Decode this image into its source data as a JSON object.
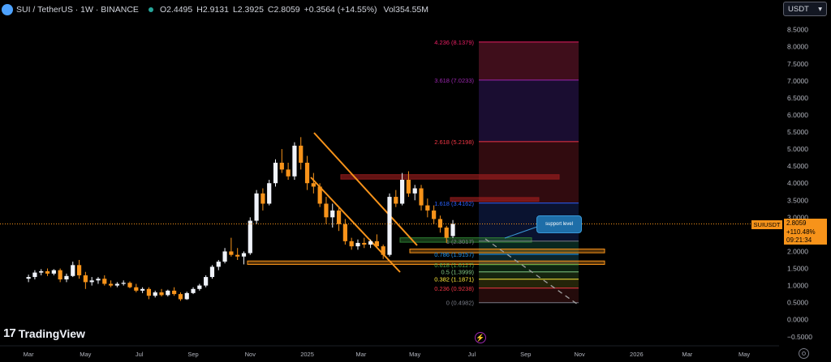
{
  "header": {
    "title": "SUI / TetherUS · 1W · BINANCE",
    "open_label": "O",
    "open": "2.4495",
    "high_label": "H",
    "high": "2.9131",
    "low_label": "L",
    "low": "2.3925",
    "close_label": "C",
    "close": "2.8059",
    "change": "+0.3564 (+14.55%)",
    "volume_label": "Vol",
    "volume": "354.55M"
  },
  "currency_button": {
    "label": "USDT",
    "icon": "chevron-down-icon"
  },
  "price_tag": {
    "symbol": "SUIUSDT",
    "price": "2.8059",
    "change": "+110.48%",
    "countdown": "09:21:34"
  },
  "callout": {
    "text": "support level"
  },
  "branding": {
    "logo_text": "TradingView",
    "logo_mark": "17"
  },
  "colors": {
    "background": "#000000",
    "up": "#f0f3fa",
    "down": "#f7931a",
    "wedge": "#f7931a",
    "price_line": "#f7931a",
    "grid_text": "#b2b5be"
  },
  "chart_data": {
    "type": "candlestick",
    "ylim": [
      -0.6,
      8.8
    ],
    "y_ticks": [
      "8.5000",
      "8.0000",
      "7.5000",
      "7.0000",
      "6.5000",
      "6.0000",
      "5.5000",
      "5.0000",
      "4.5000",
      "4.0000",
      "3.5000",
      "3.0000",
      "2.5000",
      "2.0000",
      "1.5000",
      "1.0000",
      "0.5000",
      "0.0000",
      "−0.5000"
    ],
    "y_tick_values": [
      8.5,
      8.0,
      7.5,
      7.0,
      6.5,
      6.0,
      5.5,
      5.0,
      4.5,
      4.0,
      3.5,
      3.0,
      2.5,
      2.0,
      1.5,
      1.0,
      0.5,
      0.0,
      -0.5
    ],
    "x_ticks": [
      {
        "label": "Mar",
        "week": 0
      },
      {
        "label": "May",
        "week": 9
      },
      {
        "label": "Jul",
        "week": 17.5
      },
      {
        "label": "Sep",
        "week": 26
      },
      {
        "label": "Nov",
        "week": 35
      },
      {
        "label": "2025",
        "week": 44
      },
      {
        "label": "Mar",
        "week": 52.5
      },
      {
        "label": "May",
        "week": 61
      },
      {
        "label": "Jul",
        "week": 70
      },
      {
        "label": "Sep",
        "week": 78.5
      },
      {
        "label": "Nov",
        "week": 87
      },
      {
        "label": "2026",
        "week": 96
      },
      {
        "label": "Mar",
        "week": 104
      },
      {
        "label": "May",
        "week": 113
      }
    ],
    "x_range_weeks": [
      -4.5,
      118.5
    ],
    "last_price": 2.8059,
    "candles": [
      [
        1.2,
        1.32,
        1.1,
        1.25
      ],
      [
        1.25,
        1.45,
        1.18,
        1.38
      ],
      [
        1.38,
        1.48,
        1.3,
        1.42
      ],
      [
        1.42,
        1.5,
        1.28,
        1.35
      ],
      [
        1.35,
        1.48,
        1.3,
        1.45
      ],
      [
        1.45,
        1.5,
        1.1,
        1.18
      ],
      [
        1.18,
        1.35,
        1.1,
        1.28
      ],
      [
        1.28,
        1.7,
        1.25,
        1.6
      ],
      [
        1.6,
        1.75,
        1.2,
        1.3
      ],
      [
        1.3,
        1.4,
        0.9,
        1.1
      ],
      [
        1.1,
        1.25,
        1.0,
        1.15
      ],
      [
        1.15,
        1.25,
        1.05,
        1.2
      ],
      [
        1.2,
        1.3,
        1.0,
        1.05
      ],
      [
        1.05,
        1.15,
        0.95,
        1.0
      ],
      [
        1.0,
        1.1,
        0.95,
        1.05
      ],
      [
        1.05,
        1.15,
        1.0,
        1.08
      ],
      [
        1.08,
        1.12,
        0.92,
        0.95
      ],
      [
        0.95,
        1.05,
        0.8,
        0.85
      ],
      [
        0.85,
        0.95,
        0.78,
        0.9
      ],
      [
        0.9,
        0.95,
        0.6,
        0.7
      ],
      [
        0.7,
        0.85,
        0.65,
        0.8
      ],
      [
        0.8,
        0.9,
        0.68,
        0.72
      ],
      [
        0.72,
        0.88,
        0.68,
        0.85
      ],
      [
        0.85,
        0.95,
        0.7,
        0.75
      ],
      [
        0.75,
        0.8,
        0.55,
        0.6
      ],
      [
        0.6,
        0.82,
        0.58,
        0.78
      ],
      [
        0.78,
        0.95,
        0.75,
        0.9
      ],
      [
        0.9,
        1.05,
        0.85,
        1.0
      ],
      [
        1.0,
        1.3,
        0.95,
        1.25
      ],
      [
        1.25,
        1.6,
        1.2,
        1.55
      ],
      [
        1.55,
        1.75,
        1.45,
        1.7
      ],
      [
        1.7,
        2.1,
        1.65,
        2.0
      ],
      [
        2.0,
        2.4,
        1.85,
        1.9
      ],
      [
        1.9,
        2.1,
        1.75,
        1.85
      ],
      [
        1.85,
        2.0,
        1.62,
        1.95
      ],
      [
        1.95,
        3.0,
        1.9,
        2.9
      ],
      [
        2.9,
        3.8,
        2.8,
        3.7
      ],
      [
        3.7,
        3.85,
        3.2,
        3.4
      ],
      [
        3.4,
        4.1,
        3.35,
        4.0
      ],
      [
        4.0,
        4.7,
        3.9,
        4.6
      ],
      [
        4.6,
        5.0,
        4.3,
        4.4
      ],
      [
        4.4,
        4.6,
        4.1,
        4.2
      ],
      [
        4.2,
        5.2,
        4.1,
        5.1
      ],
      [
        5.1,
        5.35,
        4.4,
        4.6
      ],
      [
        4.6,
        4.8,
        3.8,
        4.0
      ],
      [
        4.0,
        4.3,
        3.7,
        3.9
      ],
      [
        3.9,
        4.0,
        3.3,
        3.4
      ],
      [
        3.4,
        3.6,
        2.8,
        3.0
      ],
      [
        3.0,
        3.4,
        2.7,
        3.2
      ],
      [
        3.2,
        3.3,
        2.6,
        2.8
      ],
      [
        2.8,
        2.95,
        2.2,
        2.3
      ],
      [
        2.3,
        2.4,
        2.05,
        2.15
      ],
      [
        2.15,
        2.35,
        2.05,
        2.25
      ],
      [
        2.25,
        2.4,
        2.1,
        2.2
      ],
      [
        2.2,
        2.35,
        2.1,
        2.3
      ],
      [
        2.3,
        2.5,
        2.1,
        2.15
      ],
      [
        2.15,
        2.2,
        1.78,
        1.9
      ],
      [
        1.9,
        3.7,
        1.85,
        3.6
      ],
      [
        3.6,
        3.8,
        3.3,
        3.4
      ],
      [
        3.4,
        4.3,
        3.35,
        4.1
      ],
      [
        4.1,
        4.35,
        3.6,
        3.7
      ],
      [
        3.7,
        3.95,
        3.5,
        3.85
      ],
      [
        3.85,
        3.95,
        3.2,
        3.35
      ],
      [
        3.35,
        3.55,
        3.0,
        3.2
      ],
      [
        3.2,
        3.35,
        2.8,
        2.95
      ],
      [
        2.95,
        3.05,
        2.55,
        2.7
      ],
      [
        2.7,
        2.75,
        2.25,
        2.4
      ],
      [
        2.45,
        2.92,
        2.39,
        2.81
      ]
    ]
  },
  "fibonacci": {
    "levels": [
      {
        "label": "4.236 (8.1379)",
        "value": 8.1379,
        "color": "#e91e63"
      },
      {
        "label": "3.618 (7.0233)",
        "value": 7.0233,
        "color": "#9c27b0"
      },
      {
        "label": "2.618 (5.2198)",
        "value": 5.2198,
        "color": "#f23645"
      },
      {
        "label": "1.618 (3.4162)",
        "value": 3.4162,
        "color": "#2962ff"
      },
      {
        "label": "1 (2.3017)",
        "value": 2.3017,
        "color": "#787b86"
      },
      {
        "label": "0.786 (1.9157)",
        "value": 1.9157,
        "color": "#2196f3"
      },
      {
        "label": "0.618 (1.6127)",
        "value": 1.6127,
        "color": "#4caf50"
      },
      {
        "label": "0.5 (1.3999)",
        "value": 1.3999,
        "color": "#81c784"
      },
      {
        "label": "0.382 (1.1871)",
        "value": 1.1871,
        "color": "#ffeb3b"
      },
      {
        "label": "0.236 (0.9238)",
        "value": 0.9238,
        "color": "#f23645"
      },
      {
        "label": "0 (0.4982)",
        "value": 0.4982,
        "color": "#787b86"
      }
    ],
    "zone_colors": [
      {
        "from": 8.1379,
        "to": 7.0233,
        "color": "#4a1020"
      },
      {
        "from": 7.0233,
        "to": 5.2198,
        "color": "#1e0f3a"
      },
      {
        "from": 5.2198,
        "to": 3.4162,
        "color": "#3a0d12"
      },
      {
        "from": 3.4162,
        "to": 2.3017,
        "color": "#0c1638"
      },
      {
        "from": 2.3017,
        "to": 1.9157,
        "color": "#0b2f24"
      },
      {
        "from": 1.9157,
        "to": 1.6127,
        "color": "#0c2c33"
      },
      {
        "from": 1.6127,
        "to": 1.3999,
        "color": "#0f2a14"
      },
      {
        "from": 1.3999,
        "to": 1.1871,
        "color": "#1a2a12"
      },
      {
        "from": 1.1871,
        "to": 0.9238,
        "color": "#2a2a0a"
      },
      {
        "from": 0.9238,
        "to": 0.4982,
        "color": "#2a0d0d"
      }
    ]
  }
}
